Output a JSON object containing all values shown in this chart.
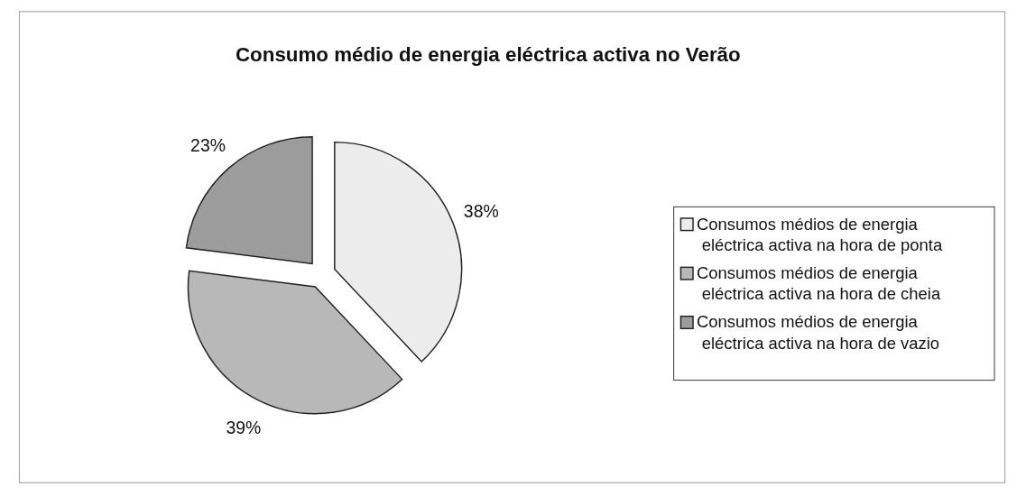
{
  "chart_data": {
    "type": "pie",
    "title": "Consumo médio de energia eléctrica activa no Verão",
    "categories": [
      "Consumos médios de energia eléctrica activa na hora de ponta",
      "Consumos médios de energia eléctrica activa na hora de cheia",
      "Consumos médios de energia eléctrica activa na hora de vazio"
    ],
    "values": [
      38,
      39,
      23
    ],
    "colors": [
      "#ececec",
      "#b8b8b8",
      "#9c9c9c"
    ],
    "value_labels": [
      "38%",
      "39%",
      "23%"
    ],
    "legend": "right"
  }
}
